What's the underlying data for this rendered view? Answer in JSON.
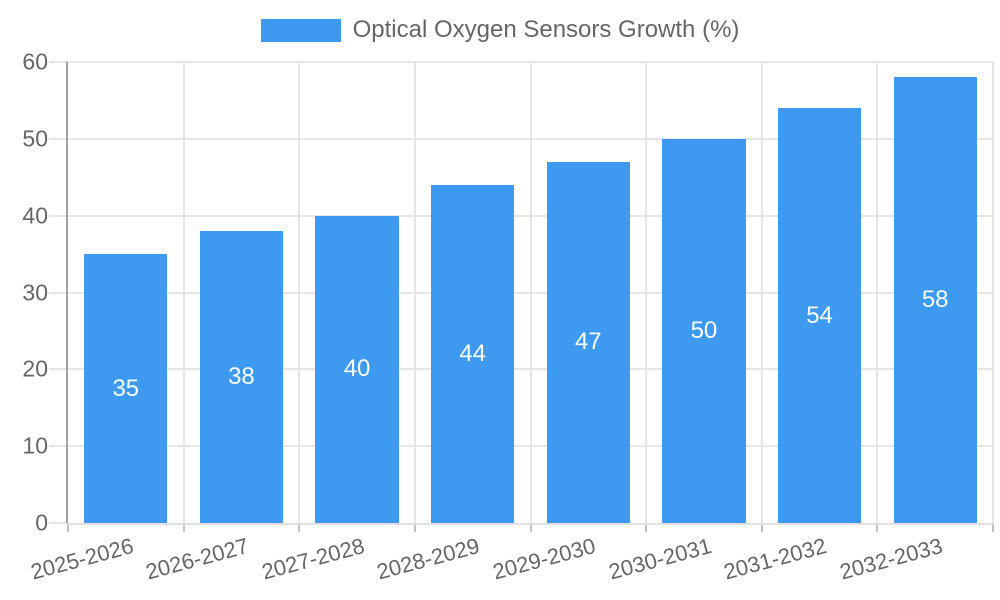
{
  "chart_data": {
    "type": "bar",
    "title": "Optical Oxygen Sensors Growth (%)",
    "categories": [
      "2025-2026",
      "2026-2027",
      "2027-2028",
      "2028-2029",
      "2029-2030",
      "2030-2031",
      "2031-2032",
      "2032-2033"
    ],
    "values": [
      35,
      38,
      40,
      44,
      47,
      50,
      54,
      58
    ],
    "ylim": [
      0,
      60
    ],
    "yticks": [
      0,
      10,
      20,
      30,
      40,
      50,
      60
    ],
    "grid": true,
    "legend_position": "top",
    "x_label_rotation_deg": -15,
    "colors": {
      "bar": "#3d9af0",
      "bar_label": "#ffffff",
      "axis_text": "#666666",
      "grid_line": "#e6e6e6",
      "axis_border": "#a3a3a3",
      "bottom_border": "#e0e0e0",
      "tick_mark": "#c2c2c2",
      "background": "#ffffff"
    }
  }
}
